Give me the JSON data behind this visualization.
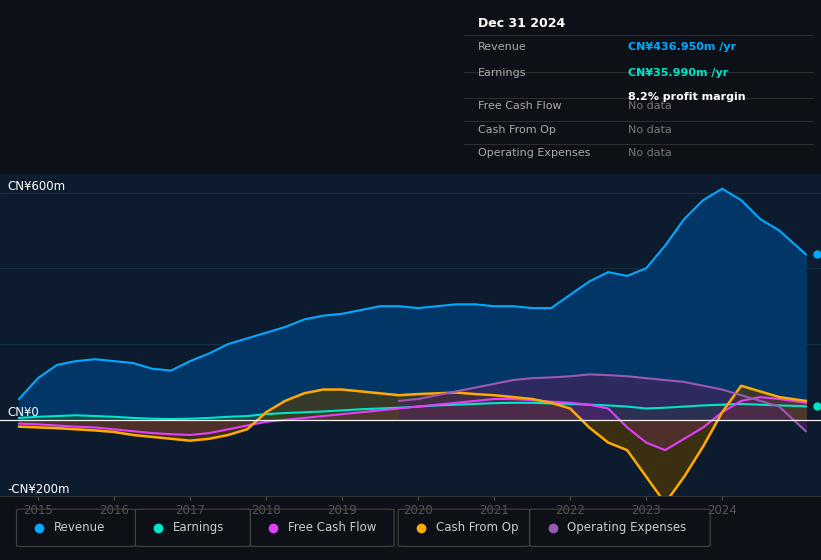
{
  "bg_color": "#0d1117",
  "plot_bg_color": "#0d1b2e",
  "ylabel_top": "CN¥600m",
  "ylabel_zero": "CN¥0",
  "ylabel_bottom": "-CN¥200m",
  "ylim": [
    -200,
    650
  ],
  "xlim_start": 2014.5,
  "xlim_end": 2025.3,
  "xticks": [
    2015,
    2016,
    2017,
    2018,
    2019,
    2020,
    2021,
    2022,
    2023,
    2024
  ],
  "legend_labels": [
    "Revenue",
    "Earnings",
    "Free Cash Flow",
    "Cash From Op",
    "Operating Expenses"
  ],
  "legend_colors": [
    "#00aaff",
    "#00e5c8",
    "#e040fb",
    "#ffaa00",
    "#9b59b6"
  ],
  "info_box": {
    "title": "Dec 31 2024",
    "rows": [
      {
        "label": "Revenue",
        "value": "CN¥436.950m /yr",
        "value_color": "#00aaff",
        "sub": null
      },
      {
        "label": "Earnings",
        "value": "CN¥35.990m /yr",
        "value_color": "#00e5c8",
        "sub": "8.2% profit margin"
      },
      {
        "label": "Free Cash Flow",
        "value": "No data",
        "value_color": "#777777",
        "sub": null
      },
      {
        "label": "Cash From Op",
        "value": "No data",
        "value_color": "#777777",
        "sub": null
      },
      {
        "label": "Operating Expenses",
        "value": "No data",
        "value_color": "#777777",
        "sub": null
      }
    ]
  },
  "revenue": {
    "x": [
      2014.75,
      2015.0,
      2015.25,
      2015.5,
      2015.75,
      2016.0,
      2016.25,
      2016.5,
      2016.75,
      2017.0,
      2017.25,
      2017.5,
      2017.75,
      2018.0,
      2018.25,
      2018.5,
      2018.75,
      2019.0,
      2019.25,
      2019.5,
      2019.75,
      2020.0,
      2020.25,
      2020.5,
      2020.75,
      2021.0,
      2021.25,
      2021.5,
      2021.75,
      2022.0,
      2022.25,
      2022.5,
      2022.75,
      2023.0,
      2023.25,
      2023.5,
      2023.75,
      2024.0,
      2024.25,
      2024.5,
      2024.75,
      2025.1
    ],
    "y": [
      55,
      110,
      145,
      155,
      160,
      155,
      150,
      135,
      130,
      155,
      175,
      200,
      215,
      230,
      245,
      265,
      275,
      280,
      290,
      300,
      300,
      295,
      300,
      305,
      305,
      300,
      300,
      295,
      295,
      330,
      365,
      390,
      380,
      400,
      460,
      530,
      580,
      610,
      580,
      530,
      500,
      437
    ],
    "color": "#00aaff",
    "fill_color": "#003a6e"
  },
  "earnings": {
    "x": [
      2014.75,
      2015.0,
      2015.25,
      2015.5,
      2015.75,
      2016.0,
      2016.25,
      2016.5,
      2016.75,
      2017.0,
      2017.25,
      2017.5,
      2017.75,
      2018.0,
      2018.25,
      2018.5,
      2018.75,
      2019.0,
      2019.25,
      2019.5,
      2019.75,
      2020.0,
      2020.25,
      2020.5,
      2020.75,
      2021.0,
      2021.25,
      2021.5,
      2021.75,
      2022.0,
      2022.25,
      2022.5,
      2022.75,
      2023.0,
      2023.25,
      2023.5,
      2023.75,
      2024.0,
      2024.25,
      2024.5,
      2024.75,
      2025.1
    ],
    "y": [
      5,
      8,
      10,
      12,
      10,
      8,
      5,
      3,
      2,
      3,
      5,
      8,
      10,
      15,
      18,
      20,
      22,
      25,
      28,
      30,
      32,
      35,
      38,
      40,
      42,
      44,
      45,
      45,
      43,
      42,
      40,
      38,
      35,
      30,
      32,
      35,
      38,
      40,
      42,
      40,
      38,
      36
    ],
    "color": "#00e5c8",
    "fill_color": "#004d40"
  },
  "free_cash_flow": {
    "x": [
      2014.75,
      2015.0,
      2015.25,
      2015.5,
      2015.75,
      2016.0,
      2016.25,
      2016.5,
      2016.75,
      2017.0,
      2017.25,
      2017.5,
      2017.75,
      2018.0,
      2018.25,
      2018.5,
      2018.75,
      2019.0,
      2019.25,
      2019.5,
      2019.75,
      2020.0,
      2020.25,
      2020.5,
      2020.75,
      2021.0,
      2021.25,
      2021.5,
      2021.75,
      2022.0,
      2022.25,
      2022.5,
      2022.75,
      2023.0,
      2023.25,
      2023.5,
      2023.75,
      2024.0,
      2024.25,
      2024.5,
      2024.75,
      2025.1
    ],
    "y": [
      -10,
      -12,
      -15,
      -18,
      -20,
      -25,
      -30,
      -35,
      -38,
      -40,
      -35,
      -25,
      -15,
      -5,
      0,
      5,
      10,
      15,
      20,
      25,
      30,
      35,
      40,
      45,
      50,
      55,
      55,
      52,
      48,
      45,
      40,
      30,
      -20,
      -60,
      -80,
      -50,
      -20,
      20,
      50,
      60,
      55,
      45
    ],
    "color": "#e040fb",
    "fill_color": "#6a1b9a"
  },
  "cash_from_op": {
    "x": [
      2014.75,
      2015.0,
      2015.25,
      2015.5,
      2015.75,
      2016.0,
      2016.25,
      2016.5,
      2016.75,
      2017.0,
      2017.25,
      2017.5,
      2017.75,
      2018.0,
      2018.25,
      2018.5,
      2018.75,
      2019.0,
      2019.25,
      2019.5,
      2019.75,
      2020.0,
      2020.25,
      2020.5,
      2020.75,
      2021.0,
      2021.25,
      2021.5,
      2021.75,
      2022.0,
      2022.25,
      2022.5,
      2022.75,
      2023.0,
      2023.25,
      2023.5,
      2023.75,
      2024.0,
      2024.25,
      2024.5,
      2024.75,
      2025.1
    ],
    "y": [
      -18,
      -20,
      -22,
      -25,
      -28,
      -32,
      -40,
      -45,
      -50,
      -55,
      -50,
      -40,
      -25,
      20,
      50,
      70,
      80,
      80,
      75,
      70,
      65,
      68,
      70,
      72,
      68,
      65,
      60,
      55,
      45,
      30,
      -20,
      -60,
      -80,
      -150,
      -220,
      -150,
      -70,
      20,
      90,
      75,
      60,
      50
    ],
    "color": "#ffaa00",
    "fill_color": "#5a3e00"
  },
  "operating_expenses": {
    "x": [
      2019.75,
      2020.0,
      2020.25,
      2020.5,
      2020.75,
      2021.0,
      2021.25,
      2021.5,
      2021.75,
      2022.0,
      2022.25,
      2022.5,
      2022.75,
      2023.0,
      2023.25,
      2023.5,
      2023.75,
      2024.0,
      2024.25,
      2024.5,
      2024.75,
      2025.1
    ],
    "y": [
      50,
      55,
      65,
      75,
      85,
      95,
      105,
      110,
      112,
      115,
      120,
      118,
      115,
      110,
      105,
      100,
      90,
      80,
      65,
      50,
      35,
      -30
    ],
    "color": "#9b59b6",
    "fill_color": "#4a235a"
  }
}
